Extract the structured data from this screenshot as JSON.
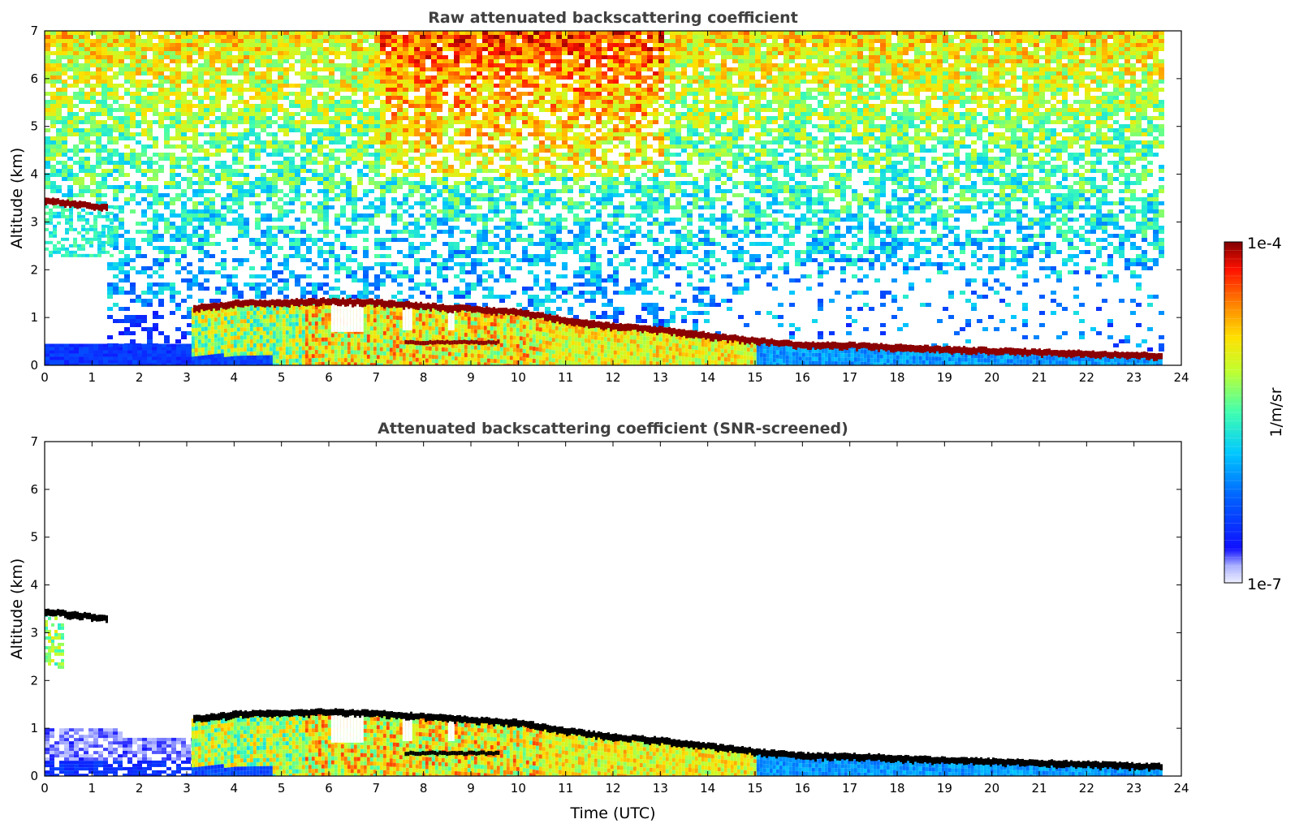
{
  "chart_data": [
    {
      "type": "heatmap",
      "title": "Raw attenuated backscattering coefficient",
      "xlabel": "",
      "ylabel": "Altitude (km)",
      "xlim": [
        0,
        24
      ],
      "ylim": [
        0,
        7
      ],
      "xticks": [
        "0",
        "1",
        "2",
        "3",
        "4",
        "5",
        "6",
        "7",
        "8",
        "9",
        "10",
        "11",
        "12",
        "13",
        "14",
        "15",
        "16",
        "17",
        "18",
        "19",
        "20",
        "21",
        "22",
        "23",
        "24"
      ],
      "yticks": [
        "0",
        "1",
        "2",
        "3",
        "4",
        "5",
        "6",
        "7"
      ],
      "screened": false,
      "cloud_layer_km": [
        {
          "t": 0.0,
          "alt": 3.45
        },
        {
          "t": 1.3,
          "alt": 3.3
        },
        {
          "t": 3.1,
          "alt": 1.2
        },
        {
          "t": 4.0,
          "alt": 1.3
        },
        {
          "t": 5.0,
          "alt": 1.32
        },
        {
          "t": 6.0,
          "alt": 1.35
        },
        {
          "t": 7.0,
          "alt": 1.32
        },
        {
          "t": 8.0,
          "alt": 1.25
        },
        {
          "t": 9.0,
          "alt": 1.18
        },
        {
          "t": 10.0,
          "alt": 1.12
        },
        {
          "t": 11.0,
          "alt": 0.95
        },
        {
          "t": 12.0,
          "alt": 0.82
        },
        {
          "t": 13.0,
          "alt": 0.75
        },
        {
          "t": 14.0,
          "alt": 0.63
        },
        {
          "t": 15.0,
          "alt": 0.52
        },
        {
          "t": 16.0,
          "alt": 0.43
        },
        {
          "t": 17.0,
          "alt": 0.42
        },
        {
          "t": 18.0,
          "alt": 0.38
        },
        {
          "t": 19.0,
          "alt": 0.34
        },
        {
          "t": 20.0,
          "alt": 0.31
        },
        {
          "t": 21.0,
          "alt": 0.28
        },
        {
          "t": 22.0,
          "alt": 0.25
        },
        {
          "t": 23.0,
          "alt": 0.22
        },
        {
          "t": 23.6,
          "alt": 0.2
        }
      ],
      "data_end_hour": 23.6
    },
    {
      "type": "heatmap",
      "title": "Attenuated backscattering coefficient (SNR-screened)",
      "xlabel": "Time (UTC)",
      "ylabel": "Altitude (km)",
      "xlim": [
        0,
        24
      ],
      "ylim": [
        0,
        7
      ],
      "xticks": [
        "0",
        "1",
        "2",
        "3",
        "4",
        "5",
        "6",
        "7",
        "8",
        "9",
        "10",
        "11",
        "12",
        "13",
        "14",
        "15",
        "16",
        "17",
        "18",
        "19",
        "20",
        "21",
        "22",
        "23",
        "24"
      ],
      "yticks": [
        "0",
        "1",
        "2",
        "3",
        "4",
        "5",
        "6",
        "7"
      ],
      "screened": true,
      "data_end_hour": 23.6
    }
  ],
  "colorbar": {
    "max_label": "1e-4",
    "min_label": "1e-7",
    "unit_label": "1/m/sr",
    "colormap": "jet",
    "cloud_color_raw": "#8b0000",
    "cloud_color_screened": "#000000"
  }
}
